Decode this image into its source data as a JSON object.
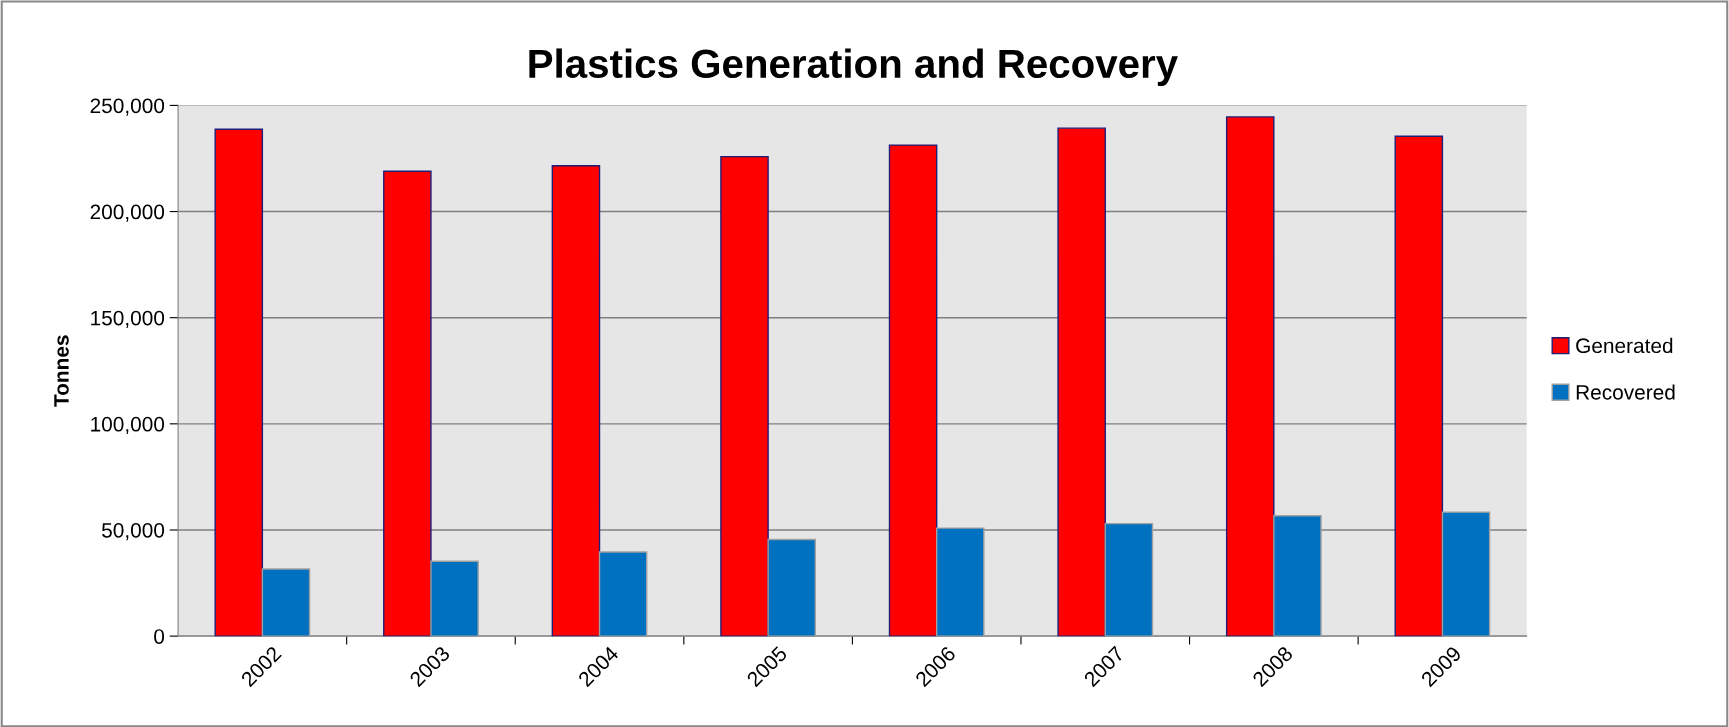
{
  "chart_data": {
    "type": "bar",
    "title": "Plastics Generation and Recovery",
    "ylabel": "Tonnes",
    "categories": [
      "2002",
      "2003",
      "2004",
      "2005",
      "2006",
      "2007",
      "2008",
      "2009"
    ],
    "series": [
      {
        "name": "Generated",
        "color": "#ff0000",
        "values": [
          238800,
          219000,
          221600,
          225900,
          231300,
          239300,
          244600,
          235500
        ]
      },
      {
        "name": "Recovered",
        "color": "#0070c0",
        "values": [
          31600,
          35300,
          39600,
          45500,
          50900,
          53000,
          56700,
          58400
        ]
      }
    ],
    "ylim": [
      0,
      250000
    ],
    "yticks": [
      {
        "value": 0,
        "label": "0"
      },
      {
        "value": 50000,
        "label": "50,000"
      },
      {
        "value": 100000,
        "label": "100,000"
      },
      {
        "value": 150000,
        "label": "150,000"
      },
      {
        "value": 200000,
        "label": "200,000"
      },
      {
        "value": 250000,
        "label": "250,000"
      }
    ],
    "grid": "y",
    "legend": "right"
  }
}
